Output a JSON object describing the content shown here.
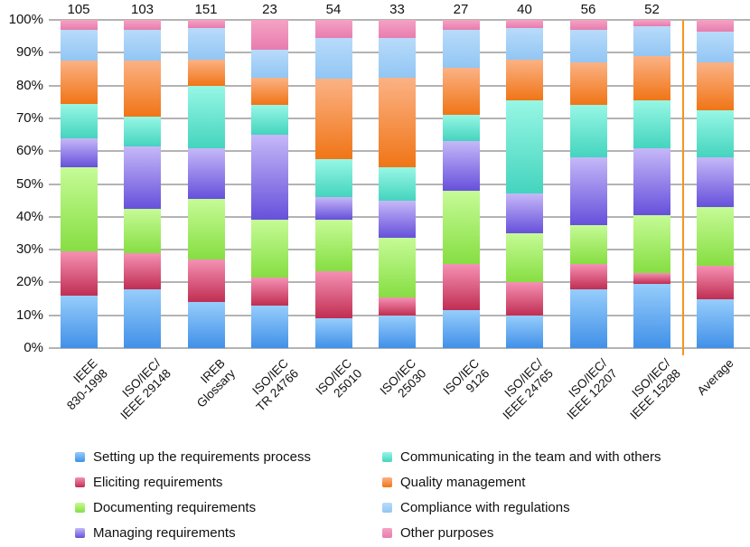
{
  "chart_data": {
    "type": "bar",
    "variant": "100-percent-stacked-column",
    "title": "",
    "categories": [
      {
        "lines": [
          "IEEE",
          "830-1998"
        ],
        "count": "105"
      },
      {
        "lines": [
          "ISO/IEC/",
          "IEEE 29148"
        ],
        "count": "103"
      },
      {
        "lines": [
          "IREB",
          "Glossary"
        ],
        "count": "151"
      },
      {
        "lines": [
          "ISO/IEC",
          "TR 24766"
        ],
        "count": "23"
      },
      {
        "lines": [
          "ISO/IEC",
          "25010"
        ],
        "count": "54"
      },
      {
        "lines": [
          "ISO/IEC",
          "25030"
        ],
        "count": "33"
      },
      {
        "lines": [
          "ISO/IEC",
          "9126"
        ],
        "count": "27"
      },
      {
        "lines": [
          "ISO/IEC/",
          "IEEE 24765"
        ],
        "count": "40"
      },
      {
        "lines": [
          "ISO/IEC/",
          "IEEE 12207"
        ],
        "count": "56"
      },
      {
        "lines": [
          "ISO/IEC/",
          "IEEE 15288"
        ],
        "count": "52"
      },
      {
        "lines": [
          "Average"
        ],
        "count": null
      }
    ],
    "separator_before_category": "Average",
    "separator_color": "#f7941e",
    "y_axis": {
      "ticks": [
        "100%",
        "90%",
        "80%",
        "70%",
        "60%",
        "50%",
        "40%",
        "30%",
        "20%",
        "10%",
        "0%"
      ],
      "min": 0,
      "max": 100,
      "step": 10,
      "grid": true,
      "gridline_color": "#b3b3b3"
    },
    "series": [
      {
        "name": "Setting up the requirements process",
        "color_top": "#96cdfb",
        "color_bottom": "#4190e8",
        "values": [
          16,
          18,
          14,
          13,
          9,
          10,
          11.5,
          10,
          18,
          19.5,
          15
        ]
      },
      {
        "name": "Eliciting requirements",
        "color_top": "#f591b4",
        "color_bottom": "#c02e52",
        "values": [
          13.5,
          11,
          13,
          8.5,
          14.5,
          5.5,
          14,
          10,
          7.5,
          3.5,
          10
        ]
      },
      {
        "name": "Documenting requirements",
        "color_top": "#c6fb97",
        "color_bottom": "#86de42",
        "values": [
          25.5,
          13.5,
          18.5,
          17.5,
          15.5,
          18,
          22.5,
          15,
          12,
          17.5,
          18
        ]
      },
      {
        "name": "Managing requirements",
        "color_top": "#c6b8f8",
        "color_bottom": "#6650db",
        "values": [
          9,
          19,
          15.5,
          26,
          7,
          11.5,
          15,
          12,
          20.5,
          20.5,
          15
        ]
      },
      {
        "name": "Communicating in the team and with others",
        "color_top": "#97f7e5",
        "color_bottom": "#44d4be",
        "values": [
          10.5,
          9,
          19,
          9,
          11.5,
          10,
          8,
          28.5,
          16,
          14.5,
          14.5
        ]
      },
      {
        "name": "Quality management",
        "color_top": "#fbb285",
        "color_bottom": "#f07516",
        "values": [
          13,
          17,
          8,
          8.5,
          24.5,
          27.5,
          14.5,
          12.5,
          13,
          13.5,
          14.5
        ]
      },
      {
        "name": "Compliance with regulations",
        "color_top": "#b8dbfa",
        "color_bottom": "#92c6f4",
        "values": [
          9.5,
          9.5,
          9.5,
          8.5,
          12.5,
          12,
          11.5,
          9.5,
          10,
          9,
          9.5
        ]
      },
      {
        "name": "Other purposes",
        "color_top": "#f4a3c4",
        "color_bottom": "#e87cae",
        "values": [
          3,
          3,
          2.5,
          9,
          5.5,
          5.5,
          3,
          2.5,
          3,
          2,
          3.5
        ]
      }
    ],
    "legend": {
      "position": "bottom",
      "columns": [
        [
          0,
          1,
          2,
          3
        ],
        [
          4,
          5,
          6,
          7
        ]
      ]
    }
  }
}
